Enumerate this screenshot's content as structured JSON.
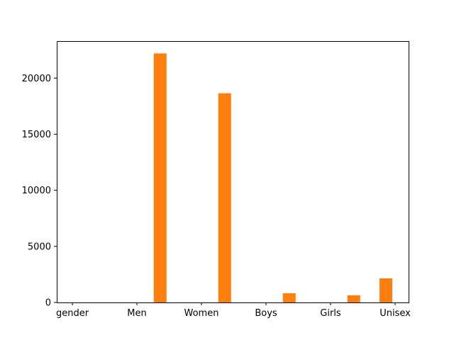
{
  "chart_data": {
    "type": "bar",
    "categories": [
      "gender",
      "Men",
      "Women",
      "Boys",
      "Girls",
      "Unisex"
    ],
    "series": [
      {
        "values": [
          0,
          22200,
          18650,
          820,
          640,
          2150
        ],
        "color": "#ff7f0e"
      }
    ],
    "ylim": [
      0,
      23300
    ],
    "yticks": [
      0,
      5000,
      10000,
      15000,
      20000
    ],
    "ytick_labels": [
      "0",
      "5000",
      "10000",
      "15000",
      "20000"
    ],
    "grid": false,
    "legend": false
  }
}
